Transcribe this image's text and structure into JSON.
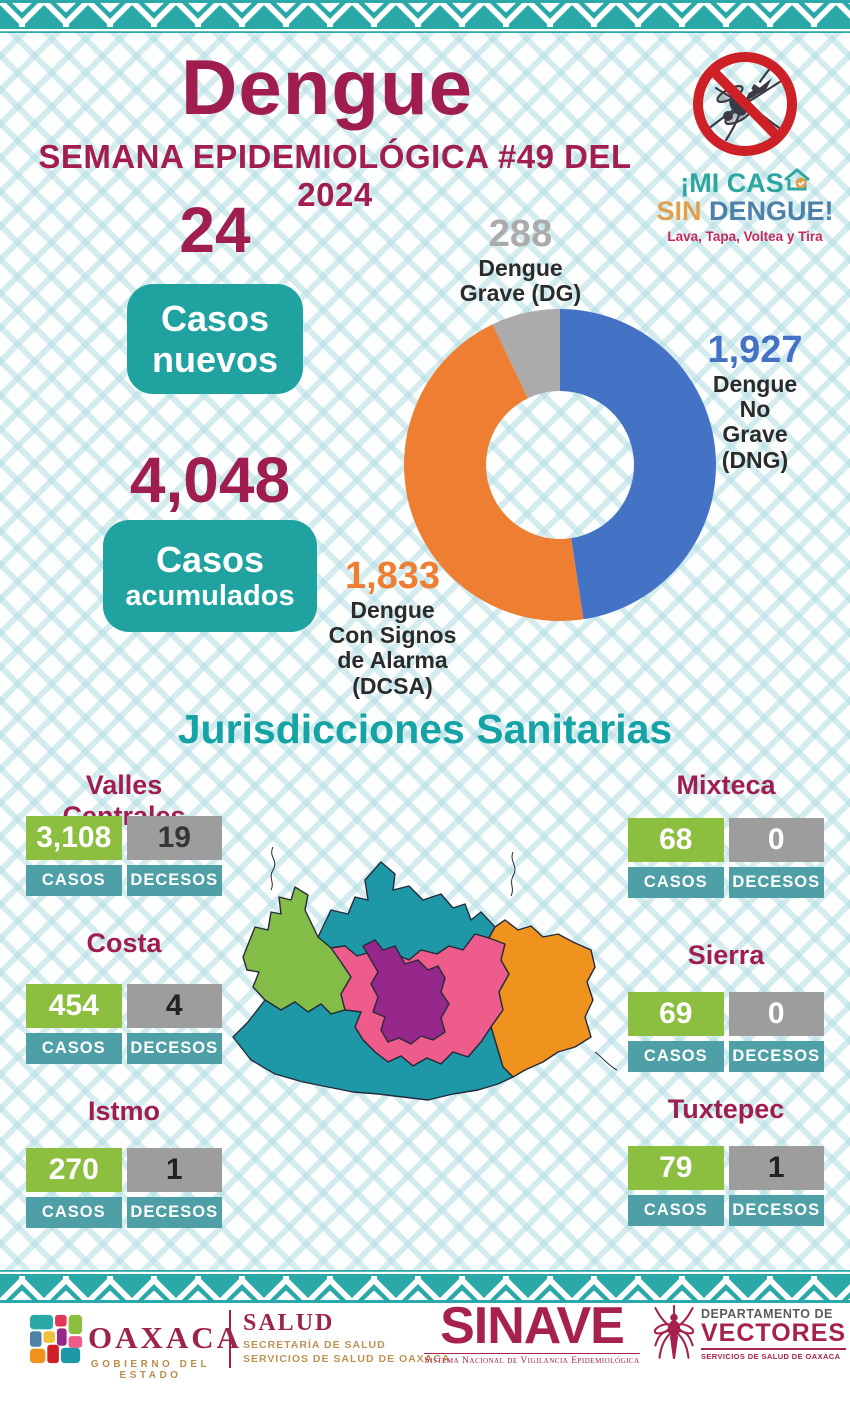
{
  "header": {
    "title": "Dengue",
    "subtitle": "SEMANA EPIDEMIOLÓGICA #49 DEL 2024"
  },
  "campaign": {
    "line1_prefix": "¡MI CAS",
    "sin": "SIN",
    "dengue": "DENGUE!",
    "tagline": "Lava, Tapa, Voltea y Tira",
    "colors": {
      "teal": "#2EA7A3",
      "sin": "#E0A14F",
      "dengue": "#4E81A8",
      "tagline": "#C22A5C"
    }
  },
  "summary": {
    "new_cases_value": "24",
    "new_cases_label_line1": "Casos",
    "new_cases_label_line2": "nuevos",
    "total_cases_value": "4,048",
    "total_cases_label_line1": "Casos",
    "total_cases_label_line2": "acumulados"
  },
  "chart_data": {
    "type": "pie",
    "subtype": "donut",
    "total": 4048,
    "start_angle_deg": 0,
    "direction": "clockwise",
    "slices": [
      {
        "label": "Dengue No Grave (DNG)",
        "value": 1927,
        "display": "1,927",
        "color": "#4473C5",
        "label_lines": [
          "Dengue",
          "No",
          "Grave",
          "(DNG)"
        ]
      },
      {
        "label": "Dengue Con Signos de Alarma (DCSA)",
        "value": 1833,
        "display": "1,833",
        "color": "#EE7E32",
        "label_lines": [
          "Dengue",
          "Con Signos",
          "de Alarma",
          "(DCSA)"
        ]
      },
      {
        "label": "Dengue Grave (DG)",
        "value": 288,
        "display": "288",
        "color": "#ABABAB",
        "label_lines": [
          "Dengue",
          "Grave (DG)"
        ]
      }
    ]
  },
  "jurisdictions": {
    "heading": "Jurisdicciones Sanitarias",
    "labels": {
      "cases": "CASOS",
      "deaths": "DECESOS"
    },
    "items": [
      {
        "name": "Valles Centrales",
        "cases": "3,108",
        "deaths": "19",
        "deaths_text_color": "#353535"
      },
      {
        "name": "Mixteca",
        "cases": "68",
        "deaths": "0",
        "deaths_text_color": "#ffffff"
      },
      {
        "name": "Costa",
        "cases": "454",
        "deaths": "4",
        "deaths_text_color": "#222222"
      },
      {
        "name": "Sierra",
        "cases": "69",
        "deaths": "0",
        "deaths_text_color": "#ffffff"
      },
      {
        "name": "Istmo",
        "cases": "270",
        "deaths": "1",
        "deaths_text_color": "#222222"
      },
      {
        "name": "Tuxtepec",
        "cases": "79",
        "deaths": "1",
        "deaths_text_color": "#222222"
      }
    ]
  },
  "map": {
    "colors": {
      "mixteca": "#83BD47",
      "tuxtepec": "#1E97A6",
      "sierra": "#EE5C8C",
      "valles_centrales": "#97288B",
      "istmo": "#F0921E",
      "costa": "#1E97A6"
    }
  },
  "footer": {
    "oaxaca": "OAXACA",
    "gobierno": "GOBIERNO DEL ESTADO",
    "salud": "SALUD",
    "secretaria": "SECRETARÍA DE SALUD",
    "servicios": "SERVICIOS DE SALUD DE OAXACA",
    "sinave": "SINAVE",
    "sinave_sub": "Sistema Nacional de Vigilancia Epidemiológica",
    "departamento": "DEPARTAMENTO DE",
    "vectores": "VECTORES",
    "vectores_sub": "SERVICIOS DE SALUD DE OAXACA"
  },
  "colors": {
    "maroon": "#9F1E4F",
    "teal_heading": "#15A3A5",
    "badge_teal": "#1FA2A0",
    "stat_label_teal": "#4F9FA6",
    "cases_green": "#8CBE3F",
    "deaths_gray": "#9D9D9D",
    "border_band_teal": "#2BA9A8"
  }
}
